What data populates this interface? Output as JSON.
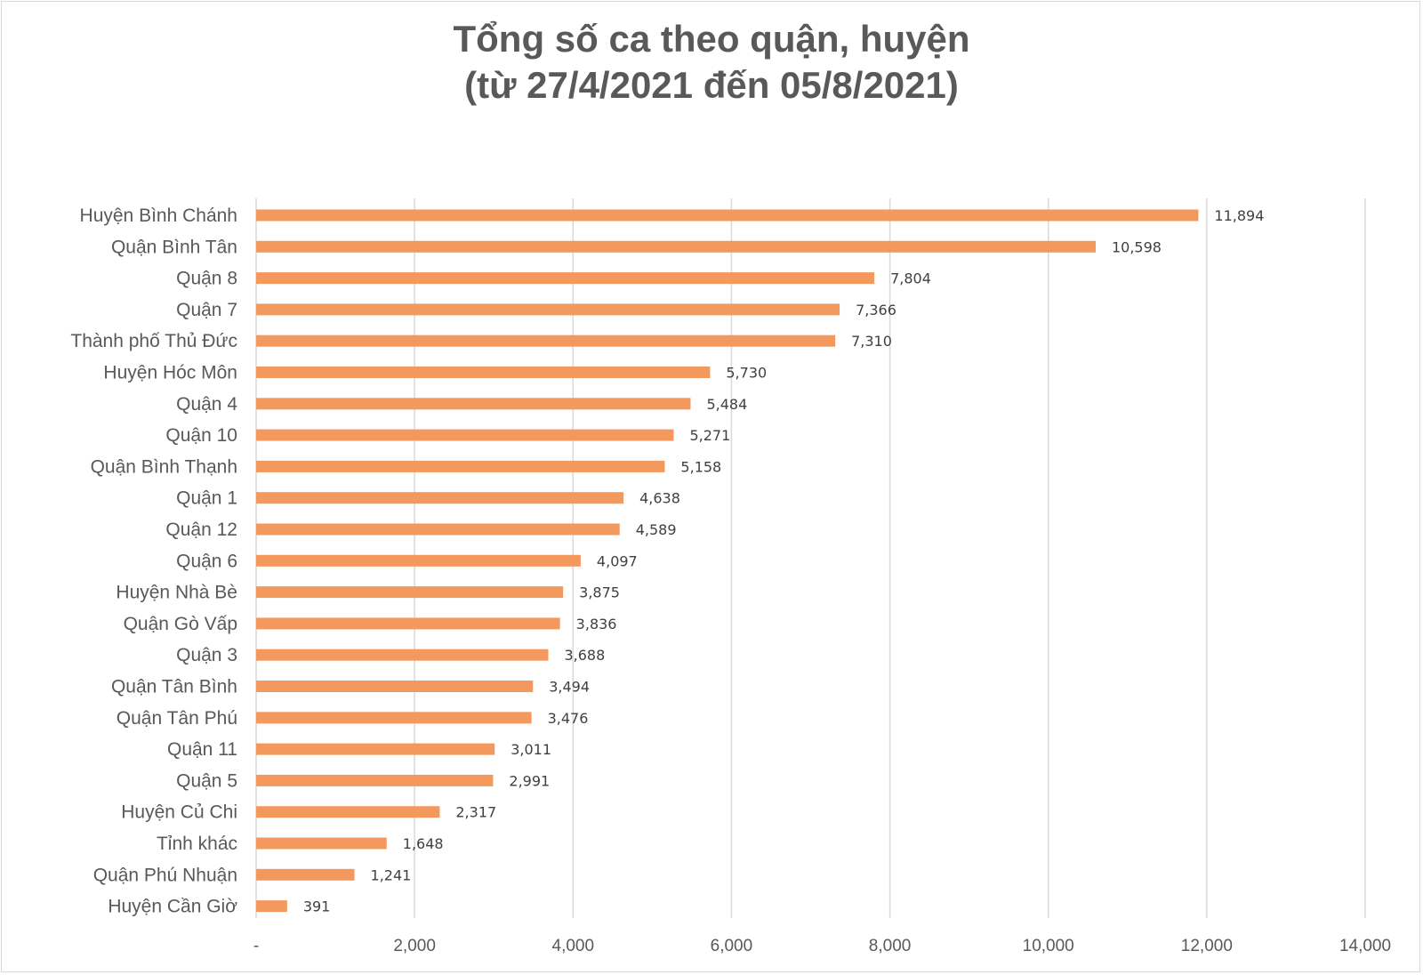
{
  "chart_data": {
    "type": "bar",
    "orientation": "horizontal",
    "title_line1": "Tổng số ca theo quận, huyện",
    "title_line2": "(từ 27/4/2021 đến 05/8/2021)",
    "xlabel": "",
    "ylabel": "",
    "xlim": [
      0,
      14000
    ],
    "grid": true,
    "bar_color": "#F4995E",
    "grid_color": "#d9d9d9",
    "categories": [
      "Huyện Bình Chánh",
      "Quận Bình Tân",
      "Quận 8",
      "Quận 7",
      "Thành phố Thủ Đức",
      "Huyện Hóc Môn",
      "Quận 4",
      "Quận 10",
      "Quận Bình Thạnh",
      "Quận 1",
      "Quận 12",
      "Quận 6",
      "Huyện Nhà Bè",
      "Quận Gò Vấp",
      "Quận 3",
      "Quận Tân Bình",
      "Quận Tân Phú",
      "Quận 11",
      "Quận 5",
      "Huyện Củ Chi",
      "Tỉnh khác",
      "Quận Phú Nhuận",
      "Huyện Cần Giờ"
    ],
    "values": [
      11894,
      10598,
      7804,
      7366,
      7310,
      5730,
      5484,
      5271,
      5158,
      4638,
      4589,
      4097,
      3875,
      3836,
      3688,
      3494,
      3476,
      3011,
      2991,
      2317,
      1648,
      1241,
      391
    ],
    "value_labels": [
      "11,894",
      "10,598",
      "7,804",
      "7,366",
      "7,310",
      "5,730",
      "5,484",
      "5,271",
      "5,158",
      "4,638",
      "4,589",
      "4,097",
      "3,875",
      "3,836",
      "3,688",
      "3,494",
      "3,476",
      "3,011",
      "2,991",
      "2,317",
      "1,648",
      "1,241",
      "391"
    ],
    "x_ticks": [
      0,
      2000,
      4000,
      6000,
      8000,
      10000,
      12000,
      14000
    ],
    "x_tick_labels": [
      "-",
      "2,000",
      "4,000",
      "6,000",
      "8,000",
      "10,000",
      "12,000",
      "14,000"
    ]
  }
}
